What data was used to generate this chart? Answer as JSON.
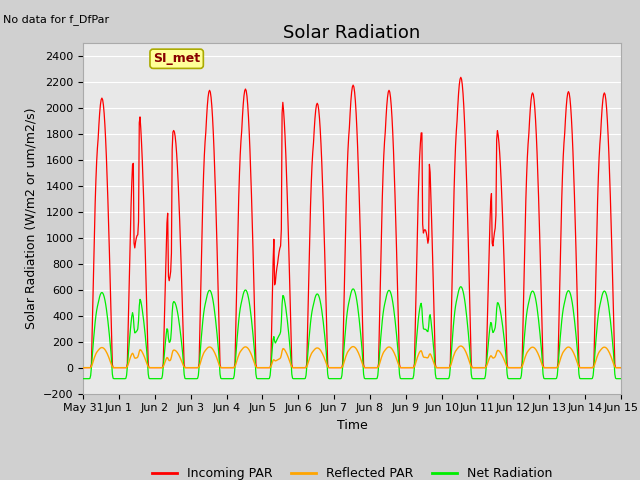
{
  "title": "Solar Radiation",
  "top_left_text": "No data for f_DfPar",
  "ylabel": "Solar Radiation (W/m2 or um/m2/s)",
  "xlabel": "Time",
  "ylim": [
    -200,
    2500
  ],
  "yticks": [
    -200,
    0,
    200,
    400,
    600,
    800,
    1000,
    1200,
    1400,
    1600,
    1800,
    2000,
    2200,
    2400
  ],
  "x_tick_labels": [
    "May 31",
    "Jun 1",
    "Jun 2",
    "Jun 3",
    "Jun 4",
    "Jun 5",
    "Jun 6",
    "Jun 7",
    "Jun 8",
    "Jun 9",
    "Jun 10",
    "Jun 11",
    "Jun 12",
    "Jun 13",
    "Jun 14",
    "Jun 15"
  ],
  "legend_entries": [
    "Incoming PAR",
    "Reflected PAR",
    "Net Radiation"
  ],
  "color_incoming": "#ff0000",
  "color_reflected": "#ffa500",
  "color_net": "#00ee00",
  "si_met_box_color": "#ffff99",
  "si_met_text_color": "#880000",
  "si_met_edge_color": "#aaaa00",
  "fig_bg_color": "#d0d0d0",
  "plot_bg_color": "#e8e8e8",
  "grid_color": "#ffffff",
  "title_fontsize": 13,
  "label_fontsize": 9,
  "tick_fontsize": 8,
  "legend_fontsize": 9
}
